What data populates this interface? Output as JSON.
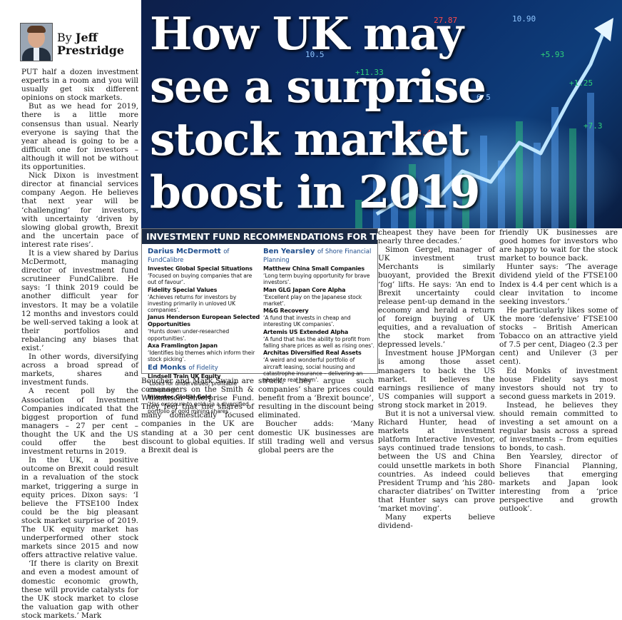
{
  "byline": {
    "by": "By",
    "first": "Jeff",
    "last": "Prestridge"
  },
  "headline": {
    "lines": [
      "How UK may",
      "see a surprise",
      "stock market",
      "boost in 2019"
    ]
  },
  "hero": {
    "tickers": [
      "+11.33",
      "27.87",
      "10.5",
      "+5.93",
      "6.5",
      "+7.3",
      "+8.40",
      "10.90",
      "+1.25"
    ]
  },
  "col1": [
    "PUT half a dozen investment experts in a room and you will usually get six different opinions on stock markets.",
    "But as we head for 2019, there is a little more consensus than usual. Nearly everyone is saying that the year ahead is going to be a difficult one for investors – although it will not be without its opportunities.",
    "Nick Dixon is investment director at financial services company Aegon. He believes that next year will be ‘challenging’ for investors, with uncertainty ‘driven by slowing global growth, Brexit and the uncertain pace of interest rate rises’.",
    "It is a view shared by Darius McDermott, managing director of investment fund scrutineer FundCalibre. He says: ‘I think 2019 could be another difficult year for investors. It may be a volatile 12 months and investors could be well-served taking a look at their portfolios and rebalancing any biases that exist.’",
    "In other words, diversifying across a broad spread of markets, shares and investment funds.",
    "A recent poll by the Association of Investment Companies indicated that the biggest proportion of fund managers – 27 per cent – thought the UK and the US could offer the best investment returns in 2019.",
    "In the UK, a positive outcome on Brexit could result in a revaluation of the stock market, triggering a surge in equity prices. Dixon says: ‘I believe the FTSE100 Index could be the big pleasant stock market surprise of 2019. The UK equity market has underperformed other stock markets since 2015 and now offers attractive relative value.",
    "‘If there is clarity on Brexit and even a modest amount of domestic economic growth, these will provide catalysts for the UK stock market to close the valuation gap with other stock markets.’ Mark"
  ],
  "col2": [
    "Boucher and Mark Swain are comanagers on the Smith & Williamson Enterprise Fund. They feel that the shares of many domestically focused companies in the UK are standing at a 30 per cent discount to global equities. If a Brexit deal is"
  ],
  "col3": [
    "struck, they argue such companies’ share prices could benefit from a ‘Brexit bounce’, resulting in the discount being eliminated.",
    "Boucher adds: ‘Many domestic UK businesses are still trading well and versus global peers are the"
  ],
  "col4": [
    "cheapest they have been for nearly three decades.’",
    "Simon Gergel, manager of UK investment trust Merchants is similarly buoyant, provided the Brexit ‘fog’ lifts. He says: ‘An end to Brexit uncertainty could release pent-up demand in the economy and herald a return of foreign buying of UK equities, and a revaluation of the stock market from depressed levels.’",
    "Investment house JPMorgan is among those asset managers to back the US market. It believes the earnings resilience of many US companies will support a strong stock market in 2019.",
    "But it is not a universal view. Richard Hunter, head of markets at investment platform Interactive Investor, says continued trade tensions between the US and China could unsettle markets in both countries. As indeed could President Trump and ‘his 280-character diatribes’ on Twitter that Hunter says can prove ‘market moving’.",
    "Many experts believe dividend-"
  ],
  "col5": [
    "friendly UK businesses are good homes for investors who are happy to wait for the stock market to bounce back.",
    "Hunter says: ‘The average dividend yield of the FTSE100 Index is 4.4 per cent which is a clear invitation to income seeking investors.’",
    "He particularly likes some of the more ‘defensive’ FTSE100 stocks – British American Tobacco on an attractive yield of 7.5 per cent, Diageo (2.3 per cent) and Unilever (3 per cent).",
    "Ed Monks of investment house Fidelity says most investors should not try to second guess markets in 2019.",
    "Instead, he believes they should remain committed to investing a set amount on a regular basis across a spread of investments – from equities to bonds, to cash.",
    "Ben Yearsley, director of Shore Financial Planning, believes that emerging markets and Japan look interesting from a ‘price perspective and growth outlook’."
  ],
  "funds": {
    "title": "INVESTMENT FUND RECOMMENDATIONS FOR THE YEAR",
    "left": [
      {
        "expert": "Darius McDermott",
        "of": "of FundCalibre",
        "items": [
          {
            "name": "Investec Global Special Situations",
            "desc": "‘Focused on buying companies that are out of favour’."
          },
          {
            "name": "Fidelity Special Values",
            "desc": "‘Achieves returns for investors by investing primarily in unloved UK companies’."
          },
          {
            "name": "Janus Henderson European Selected Opportunities",
            "desc": "‘Hunts down under-researched opportunities’."
          },
          {
            "name": "Axa Framlington Japan",
            "desc": "‘Identifies big themes which inform their stock picking’."
          }
        ]
      },
      {
        "expert": "Ed Monks",
        "of": "of Fidelity",
        "items": [
          {
            "name": "Lindsell Train UK Equity",
            "desc": "‘Looks for undervalued, profitable companies’."
          },
          {
            "name": "Investec Global Gold",
            "desc": "‘Has exposure to gold via a diversified portfolio of gold mining shares’."
          }
        ]
      }
    ],
    "right": [
      {
        "expert": "Ben Yearsley",
        "of": "of Shore Financial Planning",
        "items": [
          {
            "name": "Matthew China Small Companies",
            "desc": "‘Long term buying opportunity for brave investors’."
          },
          {
            "name": "Man GLG Japan Core Alpha",
            "desc": "‘Excellent play on the Japanese stock market’."
          },
          {
            "name": "M&G Recovery",
            "desc": "‘A fund that invests in cheap and interesting UK companies’."
          },
          {
            "name": "Artemis US Extended Alpha",
            "desc": "‘A fund that has the ability to profit from falling share prices as well as rising ones’."
          },
          {
            "name": "Architas Diversified Real Assets",
            "desc": "‘A weird and wonderful portfolio of aircraft leasing, social housing and catastrophe insurance – delivering an absolute real return’."
          }
        ]
      }
    ]
  }
}
